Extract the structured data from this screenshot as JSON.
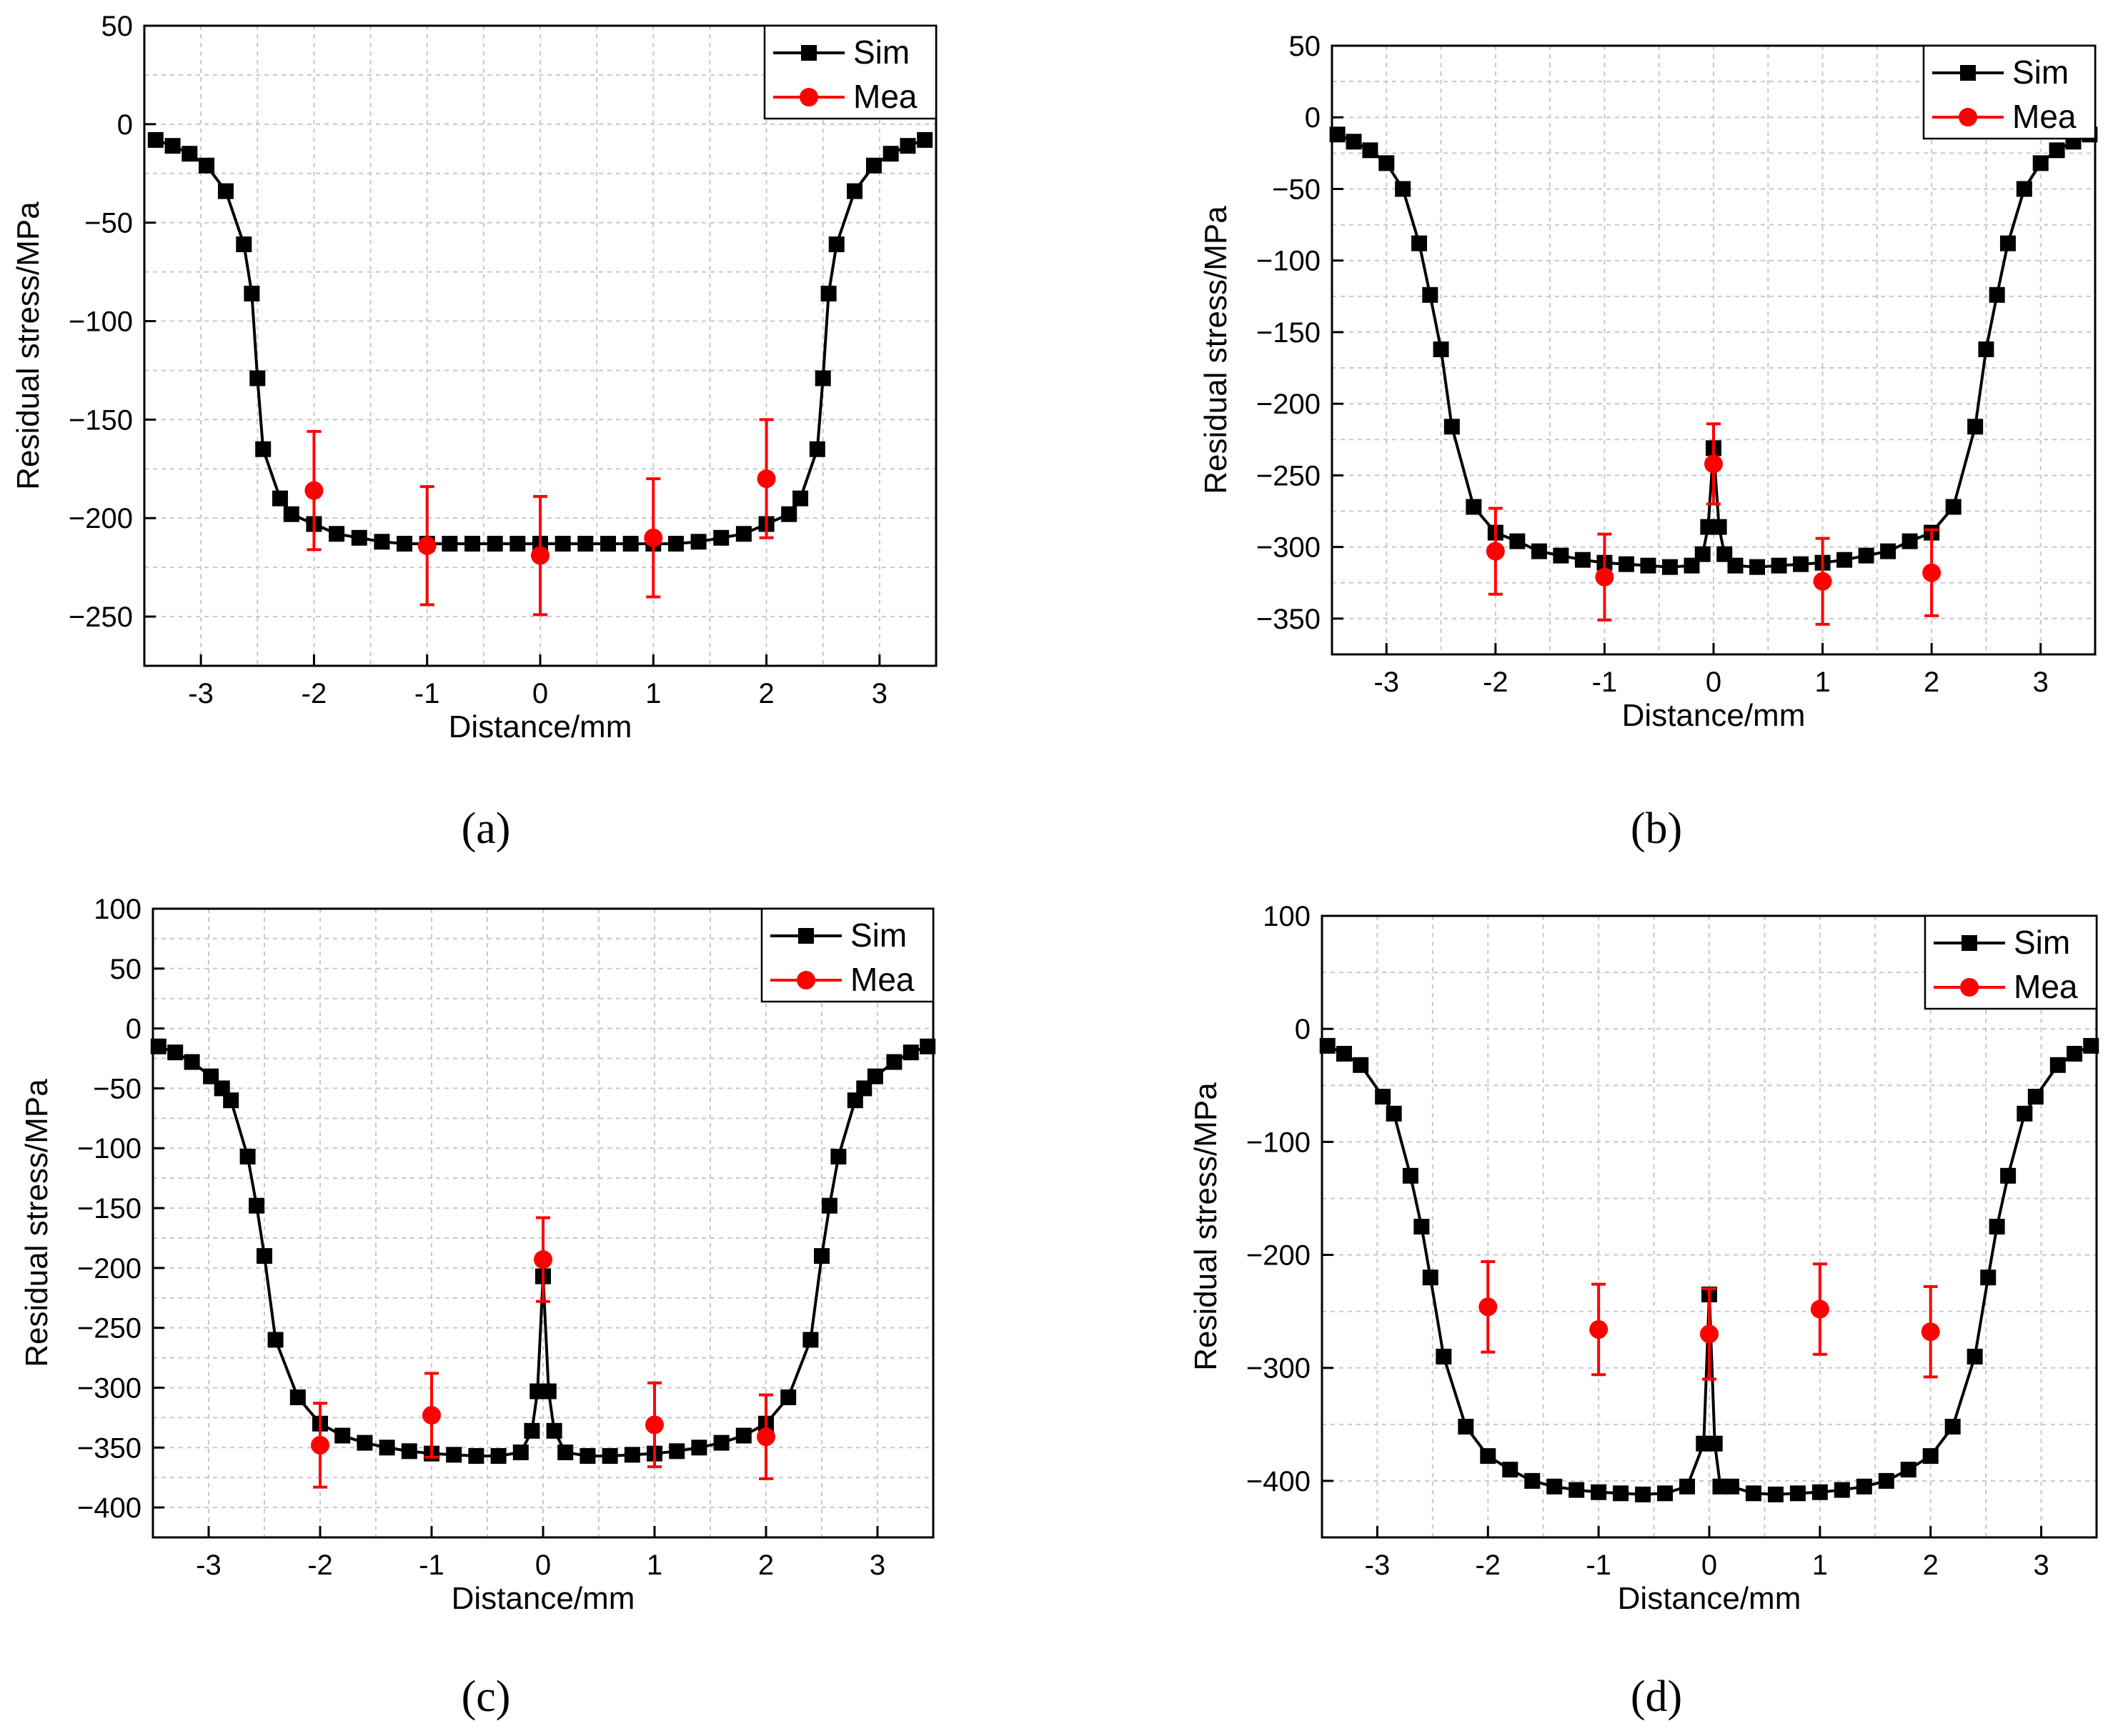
{
  "panel_captions": [
    "(a)",
    "(b)",
    "(c)",
    "(d)"
  ],
  "colors": {
    "sim": "#000000",
    "mea": "#ff0000",
    "grid": "#c8c8c8",
    "axis": "#000000"
  },
  "chart_data": [
    {
      "type": "line",
      "panel": "a",
      "xlabel": "Distance/mm",
      "ylabel": "Residual stress/MPa",
      "xlim": [
        -3.5,
        3.5
      ],
      "ylim": [
        -275,
        50
      ],
      "xticks": [
        -3,
        -2,
        -1,
        0,
        1,
        2,
        3
      ],
      "yticks": [
        50,
        0,
        -50,
        -100,
        -150,
        -200,
        -250
      ],
      "xtick_labels": [
        "-3",
        "-2",
        "-1",
        "0",
        "1",
        "2",
        "3"
      ],
      "ytick_labels": [
        "50",
        "0",
        "−50",
        "−100",
        "−150",
        "−200",
        "−250"
      ],
      "grid": true,
      "legend": {
        "position": "top-right",
        "entries": [
          "Sim",
          "Mea"
        ]
      },
      "series": [
        {
          "name": "Sim",
          "x": [
            -3.4,
            -3.25,
            -3.1,
            -2.95,
            -2.78,
            -2.62,
            -2.55,
            -2.5,
            -2.45,
            -2.3,
            -2.2,
            -2.0,
            -1.8,
            -1.6,
            -1.4,
            -1.2,
            -1.0,
            -0.8,
            -0.6,
            -0.4,
            -0.2,
            0.0,
            0.2,
            0.4,
            0.6,
            0.8,
            1.0,
            1.2,
            1.4,
            1.6,
            1.8,
            2.0,
            2.2,
            2.3,
            2.45,
            2.5,
            2.55,
            2.62,
            2.78,
            2.95,
            3.1,
            3.25,
            3.4
          ],
          "y": [
            -8,
            -11,
            -15,
            -21,
            -34,
            -61,
            -86,
            -129,
            -165,
            -190,
            -198,
            -203,
            -208,
            -210,
            -212,
            -213,
            -213,
            -213,
            -213,
            -213,
            -213,
            -213,
            -213,
            -213,
            -213,
            -213,
            -213,
            -213,
            -212,
            -210,
            -208,
            -203,
            -198,
            -190,
            -165,
            -129,
            -86,
            -61,
            -34,
            -21,
            -15,
            -11,
            -8
          ]
        },
        {
          "name": "Mea",
          "x": [
            -2,
            -1,
            0,
            1,
            2
          ],
          "y": [
            -186,
            -214,
            -219,
            -210,
            -180
          ],
          "err": [
            30,
            30,
            30,
            30,
            30
          ]
        }
      ]
    },
    {
      "type": "line",
      "panel": "b",
      "xlabel": "Distance/mm",
      "ylabel": "Residual stress/MPa",
      "xlim": [
        -3.5,
        3.5
      ],
      "ylim": [
        -375,
        50
      ],
      "xticks": [
        -3,
        -2,
        -1,
        0,
        1,
        2,
        3
      ],
      "yticks": [
        50,
        0,
        -50,
        -100,
        -150,
        -200,
        -250,
        -300,
        -350
      ],
      "xtick_labels": [
        "-3",
        "-2",
        "-1",
        "0",
        "1",
        "2",
        "3"
      ],
      "ytick_labels": [
        "50",
        "0",
        "−50",
        "−100",
        "−150",
        "−200",
        "−250",
        "−300",
        "−350"
      ],
      "grid": true,
      "legend": {
        "position": "top-right",
        "entries": [
          "Sim",
          "Mea"
        ]
      },
      "series": [
        {
          "name": "Sim",
          "x": [
            -3.45,
            -3.3,
            -3.15,
            -3.0,
            -2.85,
            -2.7,
            -2.6,
            -2.5,
            -2.4,
            -2.2,
            -2.0,
            -1.8,
            -1.6,
            -1.4,
            -1.2,
            -1.0,
            -0.8,
            -0.6,
            -0.4,
            -0.2,
            -0.1,
            -0.05,
            0.0,
            0.05,
            0.1,
            0.2,
            0.4,
            0.6,
            0.8,
            1.0,
            1.2,
            1.4,
            1.6,
            1.8,
            2.0,
            2.2,
            2.4,
            2.5,
            2.6,
            2.7,
            2.85,
            3.0,
            3.15,
            3.3,
            3.45
          ],
          "y": [
            -12,
            -17,
            -23,
            -32,
            -50,
            -88,
            -124,
            -162,
            -216,
            -272,
            -290,
            -296,
            -303,
            -306,
            -309,
            -311,
            -312,
            -313,
            -314,
            -313,
            -305,
            -286,
            -231,
            -286,
            -305,
            -313,
            -314,
            -313,
            -312,
            -311,
            -309,
            -306,
            -303,
            -296,
            -290,
            -272,
            -216,
            -162,
            -124,
            -88,
            -50,
            -32,
            -23,
            -17,
            -12
          ]
        },
        {
          "name": "Mea",
          "x": [
            -2,
            -1,
            0,
            1,
            2
          ],
          "y": [
            -303,
            -321,
            -242,
            -324,
            -318
          ],
          "err": [
            30,
            30,
            28,
            30,
            30
          ]
        }
      ]
    },
    {
      "type": "line",
      "panel": "c",
      "xlabel": "Distance/mm",
      "ylabel": "Residual stress/MPa",
      "xlim": [
        -3.5,
        3.5
      ],
      "ylim": [
        -425,
        100
      ],
      "xticks": [
        -3,
        -2,
        -1,
        0,
        1,
        2,
        3
      ],
      "yticks": [
        100,
        50,
        0,
        -50,
        -100,
        -150,
        -200,
        -250,
        -300,
        -350,
        -400
      ],
      "xtick_labels": [
        "-3",
        "-2",
        "-1",
        "0",
        "1",
        "2",
        "3"
      ],
      "ytick_labels": [
        "100",
        "50",
        "0",
        "−50",
        "−100",
        "−150",
        "−200",
        "−250",
        "−300",
        "−350",
        "−400"
      ],
      "grid": true,
      "legend": {
        "position": "top-right",
        "entries": [
          "Sim",
          "Mea"
        ]
      },
      "series": [
        {
          "name": "Sim",
          "x": [
            -3.45,
            -3.3,
            -3.15,
            -2.98,
            -2.88,
            -2.8,
            -2.65,
            -2.57,
            -2.5,
            -2.4,
            -2.2,
            -2.0,
            -1.8,
            -1.6,
            -1.4,
            -1.2,
            -1.0,
            -0.8,
            -0.6,
            -0.4,
            -0.2,
            -0.1,
            -0.05,
            0.0,
            0.05,
            0.1,
            0.2,
            0.4,
            0.6,
            0.8,
            1.0,
            1.2,
            1.4,
            1.6,
            1.8,
            2.0,
            2.2,
            2.4,
            2.5,
            2.57,
            2.65,
            2.8,
            2.88,
            2.98,
            3.15,
            3.3,
            3.45
          ],
          "y": [
            -15,
            -20,
            -28,
            -40,
            -50,
            -60,
            -107,
            -148,
            -190,
            -260,
            -308,
            -330,
            -340,
            -346,
            -350,
            -353,
            -355,
            -356,
            -357,
            -357,
            -354,
            -336,
            -303,
            -207,
            -303,
            -336,
            -354,
            -357,
            -357,
            -356,
            -355,
            -353,
            -350,
            -346,
            -340,
            -330,
            -308,
            -260,
            -190,
            -148,
            -107,
            -60,
            -50,
            -40,
            -28,
            -20,
            -15
          ]
        },
        {
          "name": "Mea",
          "x": [
            -2,
            -1,
            0,
            1,
            2
          ],
          "y": [
            -348,
            -323,
            -193,
            -331,
            -341
          ],
          "err": [
            35,
            35,
            35,
            35,
            35
          ]
        }
      ]
    },
    {
      "type": "line",
      "panel": "d",
      "xlabel": "Distance/mm",
      "ylabel": "Residual stress/MPa",
      "xlim": [
        -3.5,
        3.5
      ],
      "ylim": [
        -450,
        100
      ],
      "xticks": [
        -3,
        -2,
        -1,
        0,
        1,
        2,
        3
      ],
      "yticks": [
        100,
        0,
        -100,
        -200,
        -300,
        -400
      ],
      "xtick_labels": [
        "-3",
        "-2",
        "-1",
        "0",
        "1",
        "2",
        "3"
      ],
      "ytick_labels": [
        "100",
        "0",
        "−100",
        "−200",
        "−300",
        "−400"
      ],
      "grid": true,
      "legend": {
        "position": "top-right",
        "entries": [
          "Sim",
          "Mea"
        ]
      },
      "series": [
        {
          "name": "Sim",
          "x": [
            -3.45,
            -3.3,
            -3.15,
            -2.95,
            -2.85,
            -2.7,
            -2.6,
            -2.52,
            -2.4,
            -2.2,
            -2.0,
            -1.8,
            -1.6,
            -1.4,
            -1.2,
            -1.0,
            -0.8,
            -0.6,
            -0.4,
            -0.2,
            -0.05,
            0.0,
            0.05,
            0.1,
            0.2,
            0.4,
            0.6,
            0.8,
            1.0,
            1.2,
            1.4,
            1.6,
            1.8,
            2.0,
            2.2,
            2.4,
            2.52,
            2.6,
            2.7,
            2.85,
            2.95,
            3.15,
            3.3,
            3.45
          ],
          "y": [
            -15,
            -22,
            -32,
            -60,
            -75,
            -130,
            -175,
            -220,
            -290,
            -352,
            -378,
            -390,
            -400,
            -405,
            -408,
            -410,
            -411,
            -412,
            -411,
            -405,
            -367,
            -235,
            -367,
            -405,
            -405,
            -411,
            -412,
            -411,
            -410,
            -408,
            -405,
            -400,
            -390,
            -378,
            -352,
            -290,
            -220,
            -175,
            -130,
            -75,
            -60,
            -32,
            -22,
            -15
          ]
        },
        {
          "name": "Mea",
          "x": [
            -2,
            -1,
            0,
            1,
            2
          ],
          "y": [
            -246,
            -266,
            -270,
            -248,
            -268
          ],
          "err": [
            40,
            40,
            40,
            40,
            40
          ]
        }
      ]
    }
  ]
}
